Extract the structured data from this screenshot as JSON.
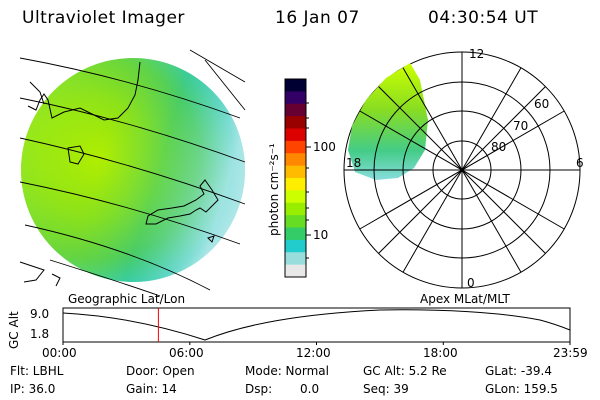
{
  "header": {
    "instrument": "Ultraviolet Imager",
    "date": "16 Jan 07",
    "time": "04:30:54 UT"
  },
  "colorbar": {
    "unit_label": "photon cm⁻²s⁻¹",
    "ticks": [
      "100",
      "10"
    ],
    "colors": [
      "#000033",
      "#330066",
      "#660033",
      "#990000",
      "#dd0000",
      "#ff4400",
      "#ff8800",
      "#ffbb00",
      "#ffee00",
      "#ccff00",
      "#99ee00",
      "#66dd22",
      "#33cc66",
      "#22cccc",
      "#99dddd",
      "#e8e8e8"
    ]
  },
  "polar": {
    "mlt_labels": {
      "top": "12",
      "left": "18",
      "right": "6",
      "bottom": "0"
    },
    "lat_labels": [
      "60",
      "70",
      "80"
    ]
  },
  "projection_labels": {
    "geographic": "Geographic Lat/Lon",
    "apex": "Apex MLat/MLT"
  },
  "altitude_plot": {
    "ylabel": "GC Alt",
    "yticks": [
      "9.0",
      "1.8"
    ],
    "xticks": [
      "00:00",
      "06:00",
      "12:00",
      "18:00",
      "23:59"
    ],
    "current_time_hours": 4.515,
    "marker_color": "#ff0000"
  },
  "status": {
    "flt": "Flt: LBHL",
    "ip": "IP: 36.0",
    "door": "Door: Open",
    "gain": "Gain: 14",
    "mode": "Mode: Normal",
    "dsp_label": "Dsp:",
    "dsp_value": "0.0",
    "gcalt": "GC Alt: 5.2 Re",
    "seq": "Seq: 39",
    "glat": "GLat: -39.4",
    "glon": "GLon: 159.5"
  }
}
